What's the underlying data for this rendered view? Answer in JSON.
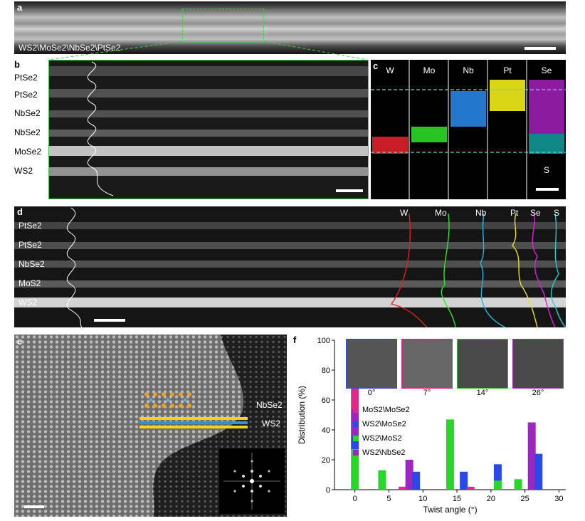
{
  "panel_a": {
    "label": "a",
    "caption": "WS2\\MoSe2\\NbSe2\\PtSe2"
  },
  "panel_b": {
    "label": "b",
    "layers": [
      "PtSe2",
      "PtSe2",
      "NbSe2",
      "NbSe2",
      "MoSe2",
      "WS2"
    ]
  },
  "panel_c": {
    "label": "c",
    "elements": [
      {
        "name": "W",
        "color": "#e0202a"
      },
      {
        "name": "Mo",
        "color": "#2ee62a"
      },
      {
        "name": "Nb",
        "color": "#2a8cf0"
      },
      {
        "name": "Pt",
        "color": "#f2ec1a"
      },
      {
        "name": "Se",
        "color": "#9a1fb0"
      }
    ],
    "extra_label": "S",
    "extra_color": "#14a0a0"
  },
  "panel_d": {
    "label": "d",
    "layers": [
      "PtSe2",
      "PtSe2",
      "NbSe2",
      "MoS2",
      "WS2"
    ],
    "profiles": [
      {
        "name": "W",
        "color": "#e02020"
      },
      {
        "name": "Mo",
        "color": "#2ee62a"
      },
      {
        "name": "Nb",
        "color": "#20b8e8"
      },
      {
        "name": "Pt",
        "color": "#f0e020"
      },
      {
        "name": "Se",
        "color": "#e020e0"
      },
      {
        "name": "S",
        "color": "#20d0d0"
      }
    ]
  },
  "panel_e": {
    "label": "e",
    "labels": [
      "NbSe2",
      "WS2"
    ]
  },
  "panel_f": {
    "label": "f",
    "insets": [
      {
        "caption": "0°",
        "border": "#3050d0"
      },
      {
        "caption": "7°",
        "border": "#e02090"
      },
      {
        "caption": "14°",
        "border": "#30c030"
      },
      {
        "caption": "26°",
        "border": "#b030c0"
      }
    ]
  },
  "chart_data": {
    "type": "bar",
    "xlabel": "Twist angle (°)",
    "ylabel": "Distribution (%)",
    "xlim": [
      -3,
      31
    ],
    "ylim": [
      0,
      100
    ],
    "xticks": [
      0,
      5,
      10,
      15,
      20,
      25,
      30
    ],
    "yticks": [
      0,
      20,
      40,
      60,
      80,
      100
    ],
    "legend_position": "top",
    "series": [
      {
        "name": "MoS2\\MoSe2",
        "color": "#e0288a"
      },
      {
        "name": "WS2\\MoSe2",
        "color": "#2848e8"
      },
      {
        "name": "WS2\\MoS2",
        "color": "#28d828"
      },
      {
        "name": "WS2\\NbSe2",
        "color": "#9a28c0"
      }
    ],
    "bars": [
      {
        "x": 0,
        "segments": [
          [
            "WS2\\MoS2",
            27
          ],
          [
            "WS2\\MoSe2",
            9
          ],
          [
            "WS2\\NbSe2",
            18
          ],
          [
            "MoS2\\MoSe2",
            43
          ]
        ]
      },
      {
        "x": 4,
        "segments": [
          [
            "WS2\\MoS2",
            13
          ]
        ]
      },
      {
        "x": 7,
        "segments": [
          [
            "MoS2\\MoSe2",
            2
          ]
        ]
      },
      {
        "x": 8,
        "segments": [
          [
            "WS2\\NbSe2",
            20
          ]
        ]
      },
      {
        "x": 9,
        "segments": [
          [
            "WS2\\MoSe2",
            12
          ]
        ]
      },
      {
        "x": 14,
        "segments": [
          [
            "WS2\\MoS2",
            47
          ]
        ]
      },
      {
        "x": 16,
        "segments": [
          [
            "WS2\\MoSe2",
            12
          ]
        ]
      },
      {
        "x": 17,
        "segments": [
          [
            "MoS2\\MoSe2",
            2
          ]
        ]
      },
      {
        "x": 21,
        "segments": [
          [
            "WS2\\MoS2",
            6
          ],
          [
            "WS2\\MoSe2",
            11
          ]
        ]
      },
      {
        "x": 24,
        "segments": [
          [
            "WS2\\MoS2",
            7
          ]
        ]
      },
      {
        "x": 26,
        "segments": [
          [
            "WS2\\NbSe2",
            45
          ]
        ]
      },
      {
        "x": 27,
        "segments": [
          [
            "WS2\\MoSe2",
            24
          ]
        ]
      }
    ]
  }
}
